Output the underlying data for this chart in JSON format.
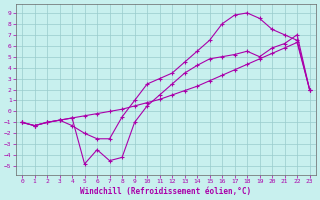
{
  "bg_color": "#c8f0ee",
  "line_color": "#aa00aa",
  "grid_color": "#99cccc",
  "xlabel": "Windchill (Refroidissement éolien,°C)",
  "x_ticks": [
    0,
    1,
    2,
    3,
    4,
    5,
    6,
    7,
    8,
    9,
    10,
    11,
    12,
    13,
    14,
    15,
    16,
    17,
    18,
    19,
    20,
    21,
    22,
    23
  ],
  "y_ticks": [
    -5,
    -4,
    -3,
    -2,
    -1,
    0,
    1,
    2,
    3,
    4,
    5,
    6,
    7,
    8,
    9
  ],
  "xlim": [
    -0.5,
    23.5
  ],
  "ylim": [
    -5.8,
    9.8
  ],
  "c1x": [
    0,
    1,
    2,
    3,
    4,
    5,
    6,
    7,
    8,
    9,
    10,
    11,
    12,
    13,
    14,
    15,
    16,
    17,
    18,
    19,
    20,
    21,
    22,
    23
  ],
  "c1y": [
    -1.0,
    -1.3,
    -1.0,
    -0.8,
    -1.3,
    -2.0,
    -2.5,
    -2.5,
    -0.5,
    1.0,
    2.5,
    3.0,
    3.5,
    4.5,
    5.5,
    6.5,
    8.0,
    8.8,
    9.0,
    8.5,
    7.5,
    7.0,
    6.5,
    2.0
  ],
  "c2x": [
    0,
    1,
    2,
    3,
    4,
    5,
    6,
    7,
    8,
    9,
    10,
    11,
    12,
    13,
    14,
    15,
    16,
    17,
    18,
    19,
    20,
    21,
    22,
    23
  ],
  "c2y": [
    -1.0,
    -1.3,
    -1.0,
    -0.8,
    -0.6,
    -4.8,
    -3.5,
    -4.5,
    -4.2,
    -1.0,
    0.5,
    1.5,
    2.5,
    3.5,
    4.2,
    4.8,
    5.0,
    5.2,
    5.5,
    5.0,
    5.8,
    6.2,
    7.0,
    2.0
  ],
  "c3x": [
    0,
    1,
    2,
    3,
    4,
    5,
    6,
    7,
    8,
    9,
    10,
    11,
    12,
    13,
    14,
    15,
    16,
    17,
    18,
    19,
    20,
    21,
    22,
    23
  ],
  "c3y": [
    -1.0,
    -1.3,
    -1.0,
    -0.8,
    -0.6,
    -0.4,
    -0.2,
    0.0,
    0.2,
    0.5,
    0.8,
    1.1,
    1.5,
    1.9,
    2.3,
    2.8,
    3.3,
    3.8,
    4.3,
    4.8,
    5.3,
    5.8,
    6.3,
    2.0
  ]
}
